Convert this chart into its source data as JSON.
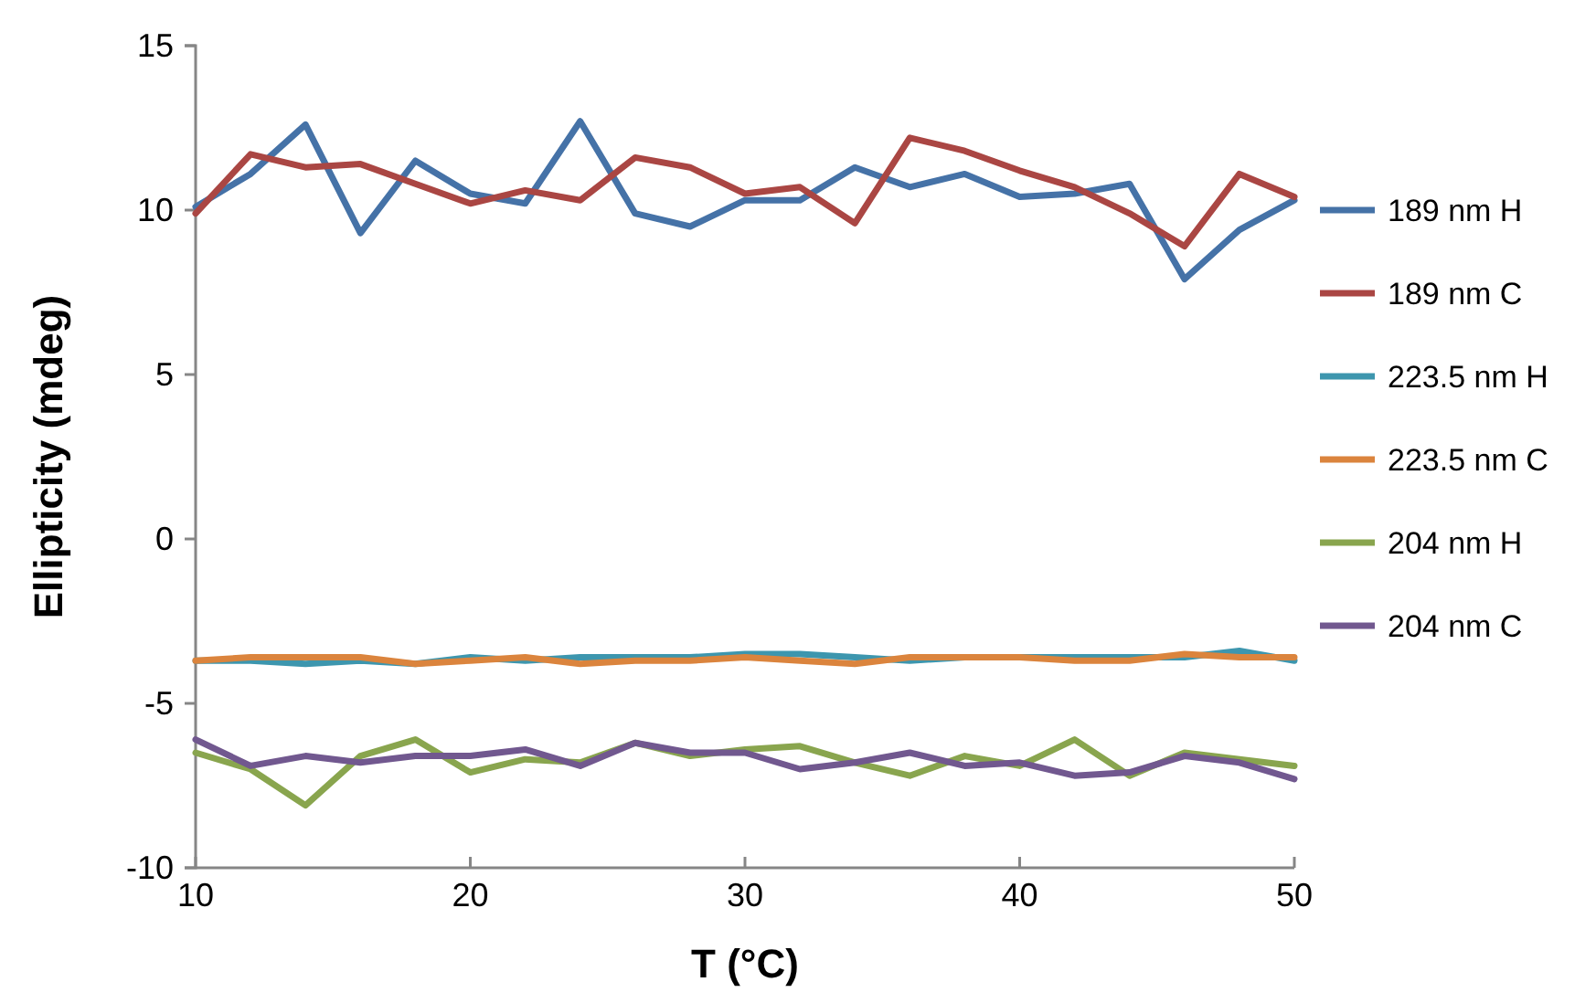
{
  "chart_data": {
    "type": "line",
    "xlabel": "T (°C)",
    "ylabel": "Ellipticity (mdeg)",
    "x": [
      10,
      12,
      14,
      16,
      18,
      20,
      22,
      24,
      26,
      28,
      30,
      32,
      34,
      36,
      38,
      40,
      42,
      44,
      46,
      48,
      50
    ],
    "xlim": [
      10,
      50
    ],
    "xticks": [
      10,
      20,
      30,
      40,
      50
    ],
    "ylim": [
      -10,
      15
    ],
    "yticks": [
      -10,
      -5,
      0,
      5,
      10,
      15
    ],
    "legend": "right",
    "marker": "none",
    "line_style": "solid",
    "series": [
      {
        "name": "189 nm H",
        "color": "#4572a7",
        "values": [
          10.1,
          11.1,
          12.6,
          9.3,
          11.5,
          10.5,
          10.2,
          12.7,
          9.9,
          9.5,
          10.3,
          10.3,
          11.3,
          10.7,
          11.1,
          10.4,
          10.5,
          10.8,
          7.9,
          9.4,
          10.3
        ]
      },
      {
        "name": "189 nm C",
        "color": "#aa4643",
        "values": [
          9.9,
          11.7,
          11.3,
          11.4,
          10.8,
          10.2,
          10.6,
          10.3,
          11.6,
          11.3,
          10.5,
          10.7,
          9.6,
          12.2,
          11.8,
          11.2,
          10.7,
          9.9,
          8.9,
          11.1,
          10.4
        ]
      },
      {
        "name": "223.5 nm H",
        "color": "#3d96ae",
        "values": [
          -3.7,
          -3.7,
          -3.8,
          -3.7,
          -3.8,
          -3.6,
          -3.7,
          -3.6,
          -3.6,
          -3.6,
          -3.5,
          -3.5,
          -3.6,
          -3.7,
          -3.6,
          -3.6,
          -3.6,
          -3.6,
          -3.6,
          -3.4,
          -3.7
        ]
      },
      {
        "name": "223.5 nm C",
        "color": "#db843d",
        "values": [
          -3.7,
          -3.6,
          -3.6,
          -3.6,
          -3.8,
          -3.7,
          -3.6,
          -3.8,
          -3.7,
          -3.7,
          -3.6,
          -3.7,
          -3.8,
          -3.6,
          -3.6,
          -3.6,
          -3.7,
          -3.7,
          -3.5,
          -3.6,
          -3.6
        ]
      },
      {
        "name": "204 nm H",
        "color": "#89a54e",
        "values": [
          -6.5,
          -7.0,
          -8.1,
          -6.6,
          -6.1,
          -7.1,
          -6.7,
          -6.8,
          -6.2,
          -6.6,
          -6.4,
          -6.3,
          -6.8,
          -7.2,
          -6.6,
          -6.9,
          -6.1,
          -7.2,
          -6.5,
          -6.7,
          -6.9
        ]
      },
      {
        "name": "204 nm C",
        "color": "#71588f",
        "values": [
          -6.1,
          -6.9,
          -6.6,
          -6.8,
          -6.6,
          -6.6,
          -6.4,
          -6.9,
          -6.2,
          -6.5,
          -6.5,
          -7.0,
          -6.8,
          -6.5,
          -6.9,
          -6.8,
          -7.2,
          -7.1,
          -6.6,
          -6.8,
          -7.3
        ]
      }
    ]
  }
}
